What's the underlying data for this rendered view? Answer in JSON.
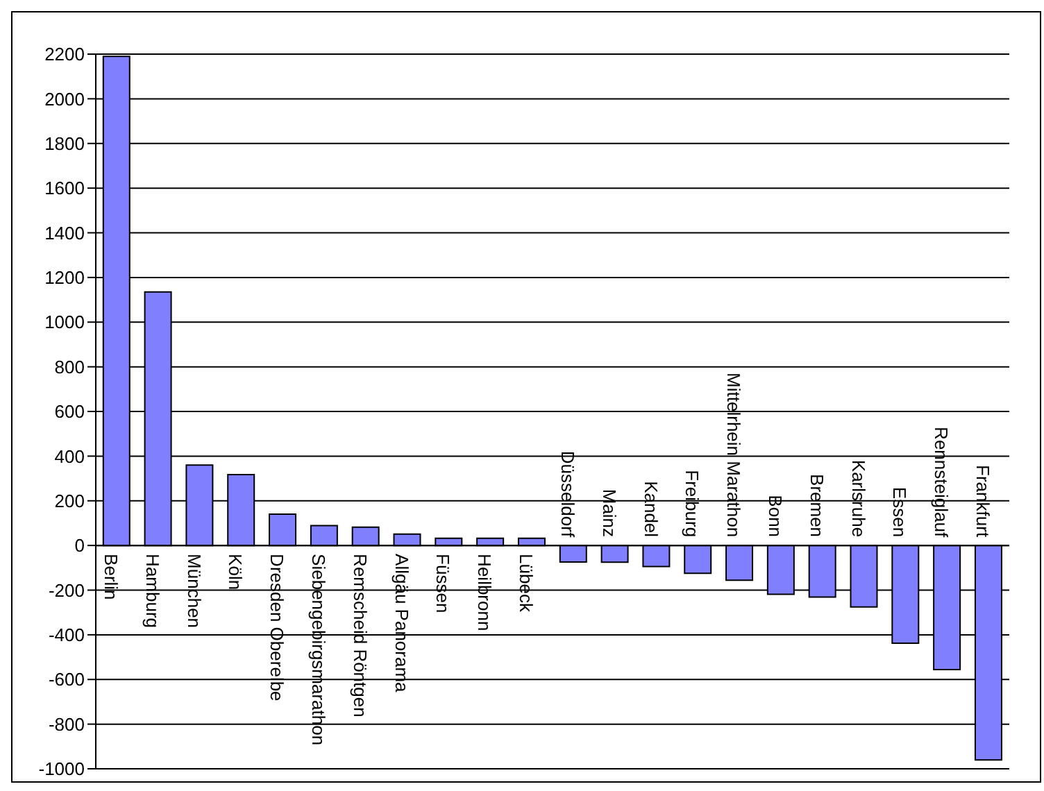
{
  "chart_data": {
    "type": "bar",
    "categories": [
      "Berlin",
      "Hamburg",
      "München",
      "Köln",
      "Dresden Oberelbe",
      "Siebengebirgsmarathon",
      "Remscheid Röntgen",
      "Allgäu Panorama",
      "Füssen",
      "Heilbronn",
      "Lübeck",
      "Düsseldorf",
      "Mainz",
      "Kandel",
      "Freiburg",
      "Mittelrhein Marathon",
      "Bonn",
      "Bremen",
      "Karlsruhe",
      "Essen",
      "Rennsteiglauf",
      "Frankfurt"
    ],
    "values": [
      2190,
      1135,
      360,
      317,
      140,
      89,
      82,
      51,
      32,
      32,
      32,
      -74,
      -75,
      -94,
      -125,
      -156,
      -219,
      -231,
      -275,
      -438,
      -556,
      -960
    ],
    "color": "#8080ff",
    "ylim": [
      -1000,
      2200
    ],
    "yticks": [
      -1000,
      -800,
      -600,
      -400,
      -200,
      0,
      200,
      400,
      600,
      800,
      1000,
      1200,
      1400,
      1600,
      1800,
      2000,
      2200
    ],
    "grid": "y"
  }
}
